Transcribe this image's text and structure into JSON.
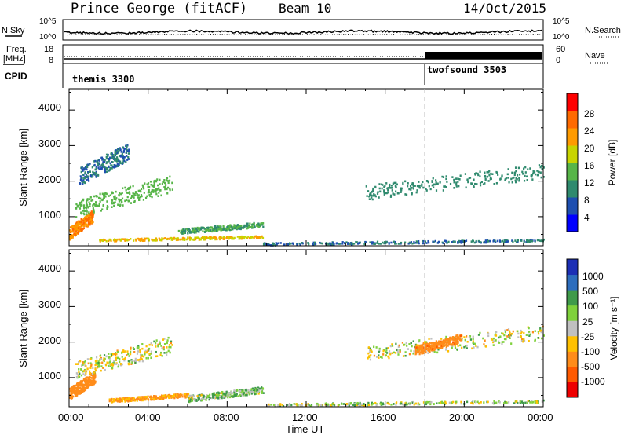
{
  "header": {
    "station": "Prince George (fitACF)",
    "beam": "Beam 10",
    "date": "14/Oct/2015"
  },
  "top_panel": {
    "left_label": "N.Sky",
    "right_label": "N.Search",
    "left_ticks": [
      "10^5",
      "10^0"
    ],
    "right_ticks": [
      "10^5",
      "10^0"
    ]
  },
  "freq_panel": {
    "left_label_1": "Freq.",
    "left_label_2": "[MHz]",
    "left_ticks": [
      "18",
      "8"
    ],
    "right_ticks": [
      "60",
      "0"
    ],
    "right_label": "Nave"
  },
  "cpid": {
    "label": "CPID",
    "segments": [
      {
        "name": "themis 3300",
        "start_hour": 0
      },
      {
        "name": "twofsound 3503",
        "start_hour": 18
      }
    ]
  },
  "x_axis": {
    "title": "Time UT",
    "ticks": [
      "00:00",
      "04:00",
      "08:00",
      "12:00",
      "16:00",
      "20:00",
      "00:00"
    ]
  },
  "power_panel": {
    "ylabel": "Slant Range [km]",
    "yticks": [
      "4000",
      "3000",
      "2000",
      "1000"
    ],
    "colorbar_label": "Power [dB]",
    "colorbar_ticks": [
      "28",
      "24",
      "20",
      "16",
      "12",
      "8",
      "4"
    ],
    "colors": [
      "#0000ff",
      "#1e4fb0",
      "#2f8a6e",
      "#57b548",
      "#c8d400",
      "#ff9b00",
      "#ff6a00",
      "#ff0000"
    ]
  },
  "velocity_panel": {
    "ylabel": "Slant Range [km]",
    "yticks": [
      "4000",
      "3000",
      "2000",
      "1000"
    ],
    "colorbar_label": "Velocity [m s⁻¹]",
    "colorbar_ticks": [
      "1000",
      "500",
      "100",
      "25",
      "-25",
      "-100",
      "-500",
      "-1000"
    ],
    "colors": [
      "#1c2fb5",
      "#2d6dbd",
      "#3f9a4a",
      "#7fd13b",
      "#c0c0c0",
      "#ffc000",
      "#ff8c1a",
      "#ff5a00",
      "#ee0000"
    ]
  },
  "chart_data": [
    {
      "type": "heatmap",
      "title": "Power [dB]",
      "xlabel": "Time UT",
      "ylabel": "Slant Range [km]",
      "xlim": [
        0,
        24
      ],
      "ylim": [
        180,
        4600
      ],
      "zlim": [
        0,
        32
      ],
      "x_unit": "hour",
      "y_unit": "km",
      "features": [
        {
          "t0": 0.0,
          "t1": 1.2,
          "r0": 300,
          "r1": 1300,
          "value": 24
        },
        {
          "t0": 0.3,
          "t1": 5.2,
          "r0": 900,
          "r1": 2300,
          "value": 14
        },
        {
          "t0": 0.5,
          "t1": 3.0,
          "r0": 1800,
          "r1": 3200,
          "value": 8
        },
        {
          "t0": 1.5,
          "t1": 9.8,
          "r0": 300,
          "r1": 500,
          "value": 20
        },
        {
          "t0": 5.5,
          "t1": 9.8,
          "r0": 500,
          "r1": 900,
          "value": 12
        },
        {
          "t0": 9.8,
          "t1": 24.0,
          "r0": 200,
          "r1": 400,
          "value": 8
        },
        {
          "t0": 15.0,
          "t1": 24.0,
          "r0": 1400,
          "r1": 2600,
          "value": 10
        }
      ]
    },
    {
      "type": "heatmap",
      "title": "Velocity [m s⁻¹]",
      "xlabel": "Time UT",
      "ylabel": "Slant Range [km]",
      "xlim": [
        0,
        24
      ],
      "ylim": [
        180,
        4600
      ],
      "zlim": [
        -1000,
        1000
      ],
      "x_unit": "hour",
      "y_unit": "km",
      "features": [
        {
          "t0": 0.0,
          "t1": 1.3,
          "r0": 300,
          "r1": 1300,
          "value": -300
        },
        {
          "t0": 0.3,
          "t1": 5.2,
          "r0": 900,
          "r1": 2300,
          "value": 0
        },
        {
          "t0": 2.0,
          "t1": 6.0,
          "r0": 300,
          "r1": 600,
          "value": -150
        },
        {
          "t0": 6.0,
          "t1": 9.8,
          "r0": 300,
          "r1": 800,
          "value": 80
        },
        {
          "t0": 15.0,
          "t1": 24.0,
          "r0": 1400,
          "r1": 2600,
          "value": 0
        },
        {
          "t0": 17.5,
          "t1": 19.8,
          "r0": 1600,
          "r1": 2300,
          "value": -400
        },
        {
          "t0": 10.0,
          "t1": 24.0,
          "r0": 200,
          "r1": 400,
          "value": 30
        }
      ]
    }
  ]
}
